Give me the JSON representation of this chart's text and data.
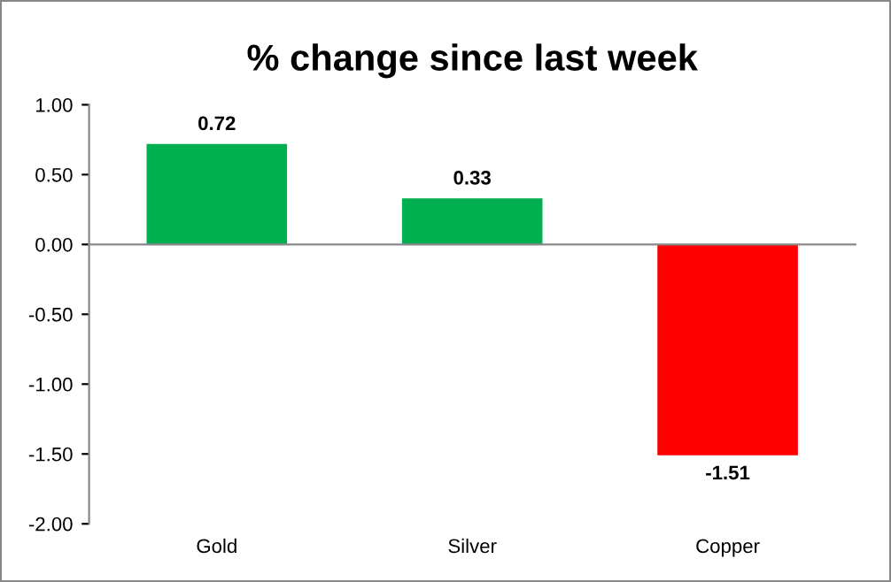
{
  "chart_data": {
    "type": "bar",
    "title": "% change since last week",
    "categories": [
      "Gold",
      "Silver",
      "Copper"
    ],
    "values": [
      0.72,
      0.33,
      -1.51
    ],
    "colors": [
      "#00b050",
      "#00b050",
      "#ff0000"
    ],
    "ylim": [
      -2,
      1
    ],
    "yticks": [
      {
        "value": -2,
        "label": "-2.00"
      },
      {
        "value": -1.5,
        "label": "-1.50"
      },
      {
        "value": -1,
        "label": "-1.00"
      },
      {
        "value": -0.5,
        "label": "-0.50"
      },
      {
        "value": 0,
        "label": "0.00"
      },
      {
        "value": 0.5,
        "label": "0.50"
      },
      {
        "value": 1,
        "label": "1.00"
      }
    ],
    "data_labels": true,
    "legend": false
  }
}
